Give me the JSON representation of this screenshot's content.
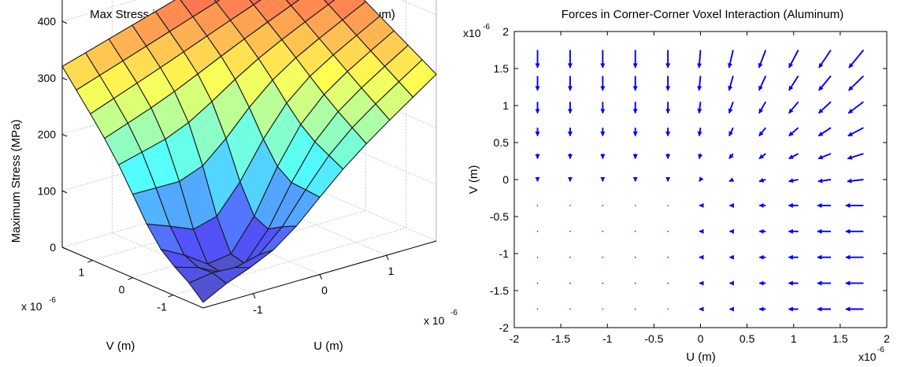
{
  "chart_data": [
    {
      "type": "surface3d",
      "title": "Max Stress in Corner-Corner Voxel Interaction (Aluminum)",
      "zlabel": "Maximum Stress (MPa)",
      "xlabel": "U (m)",
      "ylabel": "V (m)",
      "x_scale_label": "x 10",
      "x_scale_exp": "-6",
      "y_scale_label": "x 10",
      "y_scale_exp": "-6",
      "x_ticks": [
        "-1",
        "0",
        "1"
      ],
      "y_ticks": [
        "-1",
        "0",
        "1"
      ],
      "z_ticks": [
        "0",
        "100",
        "200",
        "300",
        "400"
      ],
      "xlim": [
        -1.75,
        1.75
      ],
      "ylim": [
        -1.75,
        1.75
      ],
      "zlim": [
        0,
        460
      ],
      "grid": true,
      "colormap": "jet",
      "corner_values": {
        "u-1.75_v-1.75": 10,
        "u1.75_v-1.75": 295,
        "u-1.75_v1.75": 320,
        "u1.75_v1.75": 445
      },
      "minimum": {
        "u": -0.9,
        "v": -0.9,
        "value": 10
      }
    },
    {
      "type": "quiver",
      "title": "Forces in Corner-Corner Voxel Interaction (Aluminum)",
      "xlabel": "U (m)",
      "ylabel": "V (m)",
      "x_scale_label": "x10",
      "x_scale_exp": "-6",
      "y_scale_label": "x10",
      "y_scale_exp": "-6",
      "xlim": [
        -2,
        2
      ],
      "ylim": [
        -2,
        2
      ],
      "x_ticks": [
        "-2",
        "-1.5",
        "-1",
        "-0.5",
        "0",
        "0.5",
        "1",
        "1.5",
        "2"
      ],
      "y_ticks": [
        "-2",
        "-1.5",
        "-1",
        "-0.5",
        "0",
        "0.5",
        "1",
        "1.5",
        "2"
      ],
      "grid_points": [
        -1.75,
        -1.4,
        -1.05,
        -0.7,
        -0.35,
        0,
        0.35,
        0.7,
        1.05,
        1.4,
        1.75
      ],
      "arrow_color": "#0000ff",
      "grid": false
    }
  ]
}
